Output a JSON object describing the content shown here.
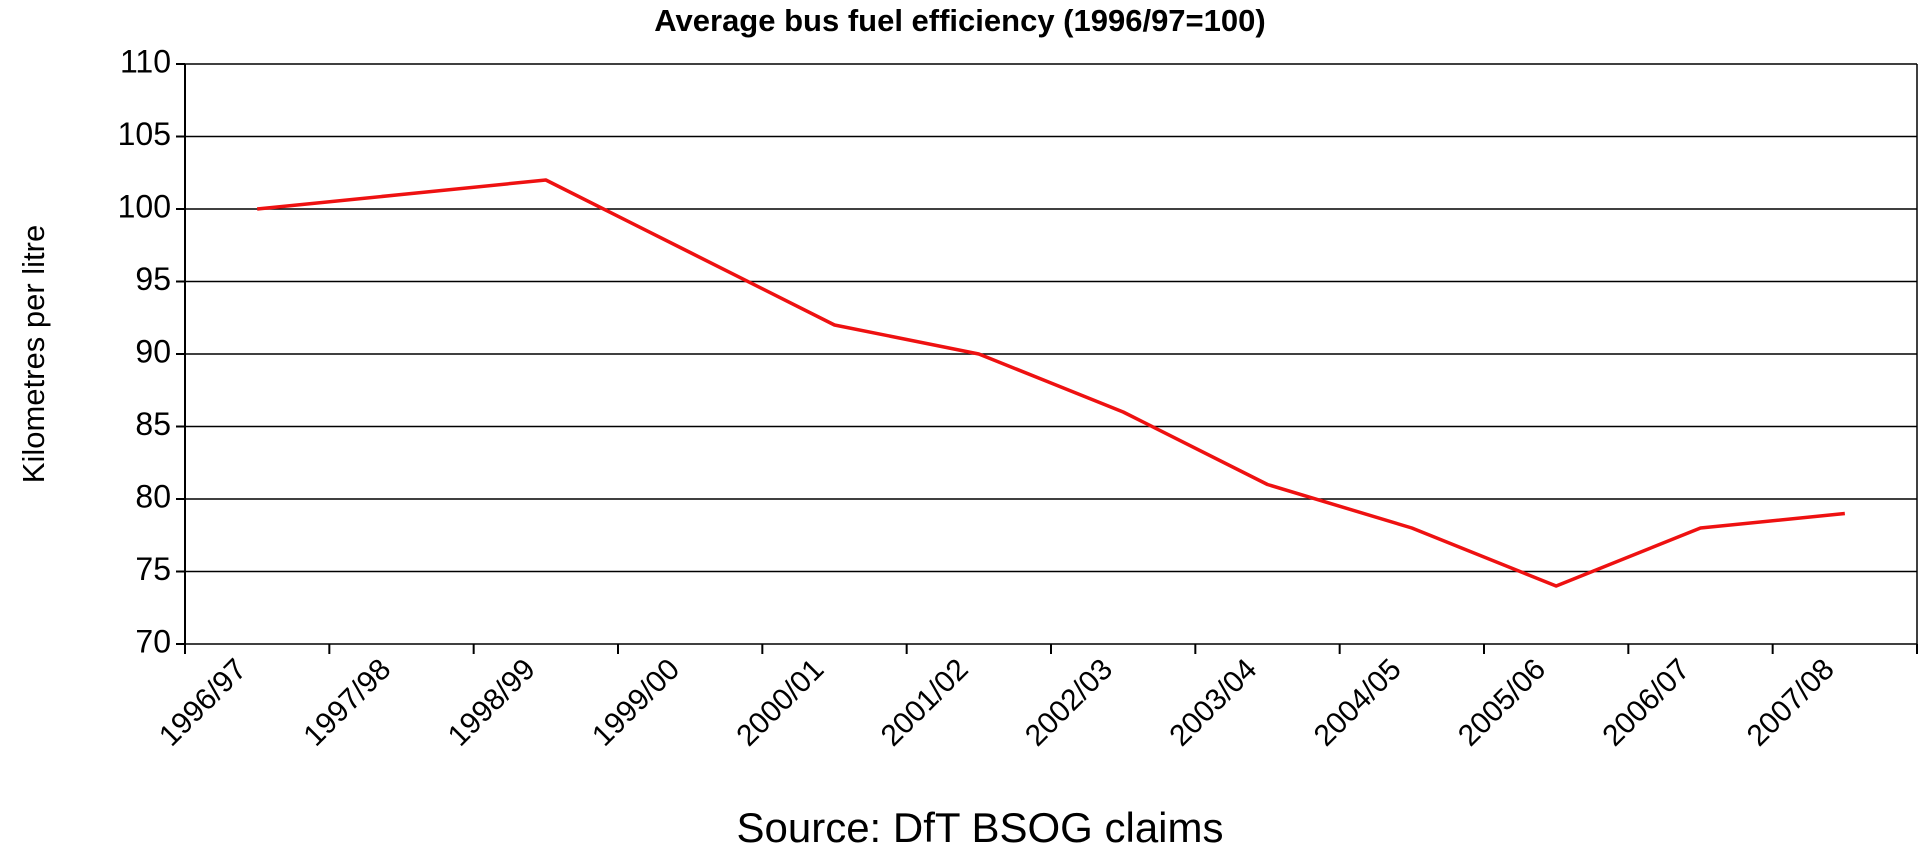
{
  "chart_data": {
    "type": "line",
    "title": "Average bus fuel efficiency (1996/97=100)",
    "y_label": "Kilometres per litre",
    "source": "Source: DfT BSOG claims",
    "categories": [
      "1996/97",
      "1997/98",
      "1998/99",
      "1999/00",
      "2000/01",
      "2001/02",
      "2002/03",
      "2003/04",
      "2004/05",
      "2005/06",
      "2006/07",
      "2007/08"
    ],
    "values": [
      100,
      101,
      102,
      97,
      92,
      90,
      86,
      81,
      78,
      74,
      78,
      79
    ],
    "color": "#ee1111",
    "ylim": [
      70,
      110
    ],
    "yticks": [
      70,
      75,
      80,
      85,
      90,
      95,
      100,
      105,
      110
    ],
    "grid": true
  }
}
